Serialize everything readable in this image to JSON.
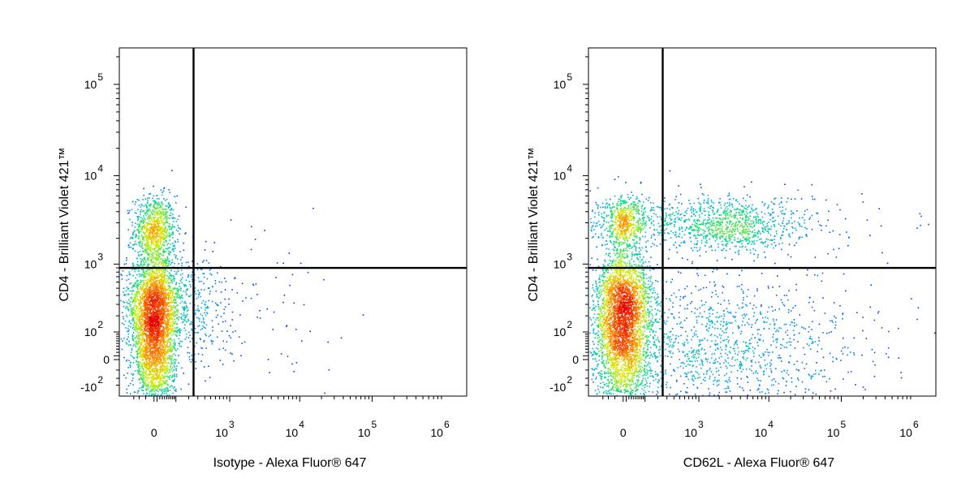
{
  "chart_data": [
    {
      "type": "scatter",
      "subtype": "flow-cytometry-density-dot-plot",
      "xlabel": "Isotype - Alexa Fluor® 647",
      "ylabel": "CD4 - Brilliant Violet 421™",
      "x_scale": "biexponential",
      "y_scale": "biexponential",
      "x_ticks": [
        {
          "value": 0,
          "base": "0",
          "exp": ""
        },
        {
          "value": 1000,
          "base": "10",
          "exp": "3"
        },
        {
          "value": 10000,
          "base": "10",
          "exp": "4"
        },
        {
          "value": 100000,
          "base": "10",
          "exp": "5"
        },
        {
          "value": 1000000,
          "base": "10",
          "exp": "6"
        }
      ],
      "y_ticks": [
        {
          "value": -100,
          "base": "-10",
          "exp": "2"
        },
        {
          "value": 0,
          "base": "0",
          "exp": ""
        },
        {
          "value": 100,
          "base": "10",
          "exp": "2"
        },
        {
          "value": 1000,
          "base": "10",
          "exp": "3"
        },
        {
          "value": 10000,
          "base": "10",
          "exp": "4"
        },
        {
          "value": 100000,
          "base": "10",
          "exp": "5"
        }
      ],
      "xlim": [
        -200,
        2000000
      ],
      "ylim": [
        -150,
        250000
      ],
      "gate": {
        "x": 250,
        "y": 900
      },
      "populations": [
        {
          "x": 0,
          "y": 2500,
          "n": 900,
          "sx": 0.03,
          "sy": 0.05
        },
        {
          "x": 0,
          "y": 320,
          "n": 1800,
          "sx": 0.04,
          "sy": 0.07
        },
        {
          "x": 0,
          "y": 30,
          "n": 2200,
          "sx": 0.03,
          "sy": 0.1
        },
        {
          "x": 250,
          "y": 280,
          "n": 350,
          "sx": 0.06,
          "sy": 0.09
        },
        {
          "x": 3000,
          "y": 300,
          "n": 60,
          "sx": 0.12,
          "sy": 0.12
        }
      ],
      "grid": false,
      "legend": "none"
    },
    {
      "type": "scatter",
      "subtype": "flow-cytometry-density-dot-plot",
      "xlabel": "CD62L - Alexa Fluor® 647",
      "ylabel": "CD4 - Brilliant Violet 421™",
      "x_scale": "biexponential",
      "y_scale": "biexponential",
      "x_ticks": [
        {
          "value": 0,
          "base": "0",
          "exp": ""
        },
        {
          "value": 1000,
          "base": "10",
          "exp": "3"
        },
        {
          "value": 10000,
          "base": "10",
          "exp": "4"
        },
        {
          "value": 100000,
          "base": "10",
          "exp": "5"
        },
        {
          "value": 1000000,
          "base": "10",
          "exp": "6"
        }
      ],
      "y_ticks": [
        {
          "value": -100,
          "base": "-10",
          "exp": "2"
        },
        {
          "value": 0,
          "base": "0",
          "exp": ""
        },
        {
          "value": 100,
          "base": "10",
          "exp": "2"
        },
        {
          "value": 1000,
          "base": "10",
          "exp": "3"
        },
        {
          "value": 10000,
          "base": "10",
          "exp": "4"
        },
        {
          "value": 100000,
          "base": "10",
          "exp": "5"
        }
      ],
      "xlim": [
        -200,
        2000000
      ],
      "ylim": [
        -150,
        250000
      ],
      "gate": {
        "x": 250,
        "y": 900
      },
      "populations": [
        {
          "x": 0,
          "y": 3000,
          "n": 500,
          "sx": 0.03,
          "sy": 0.04
        },
        {
          "x": 1000,
          "y": 3000,
          "n": 900,
          "sx": 0.2,
          "sy": 0.04
        },
        {
          "x": 3000,
          "y": 2800,
          "n": 400,
          "sx": 0.06,
          "sy": 0.04
        },
        {
          "x": 0,
          "y": 350,
          "n": 1700,
          "sx": 0.04,
          "sy": 0.07
        },
        {
          "x": 0,
          "y": 40,
          "n": 1800,
          "sx": 0.04,
          "sy": 0.1
        },
        {
          "x": 1200,
          "y": 40,
          "n": 1500,
          "sx": 0.22,
          "sy": 0.1
        }
      ],
      "grid": false,
      "legend": "none"
    }
  ]
}
